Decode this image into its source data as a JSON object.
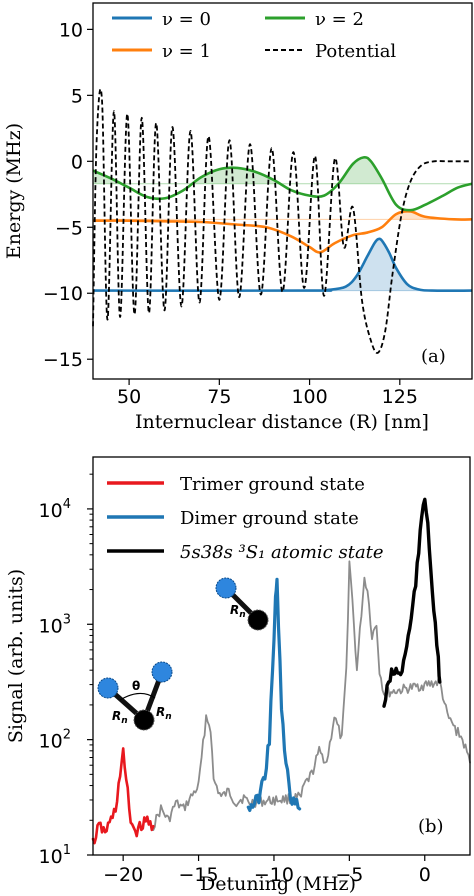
{
  "chart_data": [
    {
      "type": "line",
      "panel_label": "(a)",
      "xlabel": "Internuclear distance (R) [nm]",
      "ylabel": "Energy (MHz)",
      "xlim": [
        40,
        145
      ],
      "ylim": [
        -16.5,
        12
      ],
      "xticks": [
        "50",
        "75",
        "100",
        "125"
      ],
      "xtick_values": [
        50,
        75,
        100,
        125
      ],
      "yticks": [
        "10",
        "5",
        "0",
        "−5",
        "−10",
        "−15"
      ],
      "ytick_values": [
        10,
        5,
        0,
        -5,
        -10,
        -15
      ],
      "legend": [
        "ν = 0",
        "ν = 1",
        "ν = 2",
        "Potential"
      ],
      "legend_position": "top",
      "series": [
        {
          "name": "ν = 0",
          "color": "#1f77b4",
          "offset": -9.8,
          "x": [
            40,
            100,
            105,
            110,
            113,
            116,
            118,
            119,
            120,
            122,
            124,
            127,
            130,
            134,
            145
          ],
          "y": [
            -9.8,
            -9.8,
            -9.75,
            -9.5,
            -8.7,
            -7.2,
            -6.2,
            -5.9,
            -6.0,
            -6.9,
            -8.1,
            -9.3,
            -9.7,
            -9.8,
            -9.8
          ]
        },
        {
          "name": "ν = 1",
          "color": "#ff7f0e",
          "offset": -4.4,
          "x": [
            40,
            50,
            60,
            70,
            80,
            88,
            95,
            100,
            103,
            107,
            112,
            116,
            120,
            124,
            128,
            132,
            140,
            145
          ],
          "y": [
            -4.5,
            -4.5,
            -4.55,
            -4.6,
            -4.8,
            -5.0,
            -5.7,
            -6.5,
            -6.9,
            -6.2,
            -5.6,
            -5.4,
            -5.0,
            -4.0,
            -3.8,
            -4.2,
            -4.4,
            -4.4
          ]
        },
        {
          "name": "ν = 2",
          "color": "#2ca02c",
          "offset": -1.7,
          "x": [
            40,
            45,
            50,
            55,
            60,
            65,
            70,
            75,
            80,
            85,
            90,
            95,
            100,
            104,
            108,
            112,
            115,
            117,
            120,
            124,
            128,
            132,
            137,
            141,
            145
          ],
          "y": [
            -0.7,
            -1.3,
            -2.0,
            -2.7,
            -2.8,
            -2.2,
            -1.2,
            -0.6,
            -0.5,
            -0.8,
            -1.4,
            -2.2,
            -2.6,
            -2.6,
            -1.7,
            -0.2,
            0.3,
            0.0,
            -1.3,
            -3.3,
            -3.7,
            -3.3,
            -2.6,
            -2.0,
            -1.7
          ]
        },
        {
          "name": "Potential",
          "color": "#000000",
          "dashed": true,
          "x": [
            40,
            41,
            42.5,
            44,
            45.8,
            47.5,
            49.5,
            51.5,
            53.5,
            55.5,
            57.5,
            59.8,
            62,
            64.5,
            67,
            69.5,
            72,
            75,
            77.8,
            80.5,
            83.5,
            86.5,
            89.5,
            92.5,
            95.5,
            98.5,
            101.5,
            104,
            107,
            109.5,
            112,
            114.5,
            117,
            119,
            121,
            123,
            125.5,
            128,
            131,
            134.5,
            138,
            141,
            145
          ],
          "y": [
            -12.5,
            1.5,
            4.6,
            -12.0,
            3.8,
            -11.8,
            3.6,
            -11.6,
            3.3,
            -11.5,
            2.9,
            -11.3,
            2.6,
            -11.0,
            2.3,
            -10.7,
            1.9,
            -10.5,
            1.6,
            -10.3,
            1.3,
            -10.1,
            1.0,
            -9.9,
            0.7,
            -9.6,
            0.4,
            -10.2,
            0.2,
            -6.5,
            -3.5,
            -10.5,
            -13.6,
            -14.5,
            -12.8,
            -8.5,
            -4.0,
            -1.5,
            -0.3,
            0.0,
            0.0,
            0.0,
            0.0
          ]
        }
      ]
    },
    {
      "type": "line",
      "panel_label": "(b)",
      "xlabel": "Detuning (MHz)",
      "ylabel": "Signal (arb. units)",
      "xlim": [
        -22,
        3
      ],
      "ylim_log10": [
        1,
        4.45
      ],
      "yscale": "log",
      "xticks": [
        "−20",
        "−15",
        "−10",
        "−5",
        "0"
      ],
      "xtick_values": [
        -20,
        -15,
        -10,
        -5,
        0
      ],
      "yticks_base": "10",
      "yticks_exp": [
        "1",
        "2",
        "3",
        "4"
      ],
      "ytick_values": [
        1,
        2,
        3,
        4
      ],
      "legend": [
        "Trimer ground state",
        "Dimer ground state",
        "5s38s ³S₁ atomic state"
      ],
      "legend_position": "upper left",
      "inset_labels": [
        "θ",
        "R",
        "n",
        "R",
        "n",
        "R",
        "n"
      ],
      "series": [
        {
          "name": "Background",
          "color": "#8c8c8c",
          "width": 1.8,
          "x": [
            -18,
            -17.5,
            -17,
            -16.5,
            -16,
            -15.5,
            -15,
            -14.5,
            -14.2,
            -14,
            -13.5,
            -13,
            -12.5,
            -12,
            -11.7,
            -8.2,
            -8,
            -7.5,
            -7,
            -6.5,
            -6,
            -5.5,
            -5.2,
            -5,
            -4.8,
            -4.5,
            -4.2,
            -4,
            -3.8,
            -3.5,
            -3.2,
            -3,
            -2.7,
            1,
            1.5,
            2,
            2.5,
            3
          ],
          "y": [
            1.25,
            1.4,
            1.3,
            1.45,
            1.4,
            1.5,
            1.6,
            2.2,
            2.1,
            1.65,
            1.5,
            1.55,
            1.45,
            1.5,
            1.45,
            1.5,
            1.6,
            1.7,
            1.9,
            1.8,
            2.2,
            2.0,
            2.6,
            3.55,
            3.2,
            2.6,
            3.1,
            3.4,
            3.3,
            2.9,
            3.0,
            2.6,
            2.4,
            2.5,
            2.2,
            2.1,
            2.0,
            1.8
          ]
        },
        {
          "name": "Trimer ground state",
          "color": "#e8181e",
          "width": 2.6,
          "x": [
            -22,
            -21.6,
            -21.2,
            -20.8,
            -20.5,
            -20.2,
            -20,
            -19.8,
            -19.5,
            -19.2,
            -18.8,
            -18.4,
            -18
          ],
          "y": [
            1.1,
            1.25,
            1.2,
            1.3,
            1.4,
            1.7,
            1.88,
            1.65,
            1.3,
            1.2,
            1.25,
            1.3,
            1.25
          ]
        },
        {
          "name": "Dimer ground state",
          "color": "#1f77b4",
          "width": 3.2,
          "x": [
            -11.7,
            -11.3,
            -11,
            -10.6,
            -10.3,
            -10.1,
            -9.9,
            -9.8,
            -9.7,
            -9.5,
            -9.3,
            -9.1,
            -8.9,
            -8.6,
            -8.3
          ],
          "y": [
            1.4,
            1.45,
            1.5,
            1.7,
            2.0,
            2.6,
            3.2,
            3.35,
            3.0,
            2.3,
            1.9,
            1.7,
            1.5,
            1.45,
            1.4
          ]
        },
        {
          "name": "5s38s ³S₁ atomic state",
          "color": "#000000",
          "width": 3.4,
          "x": [
            -2.7,
            -2.3,
            -1.9,
            -1.6,
            -1.3,
            -1.0,
            -0.7,
            -0.4,
            -0.2,
            0,
            0.2,
            0.4,
            0.6,
            0.9,
            1.0
          ],
          "y": [
            2.3,
            2.55,
            2.6,
            2.55,
            2.75,
            2.95,
            3.25,
            3.6,
            3.95,
            4.1,
            3.9,
            3.5,
            3.1,
            2.7,
            2.5
          ]
        }
      ]
    }
  ]
}
